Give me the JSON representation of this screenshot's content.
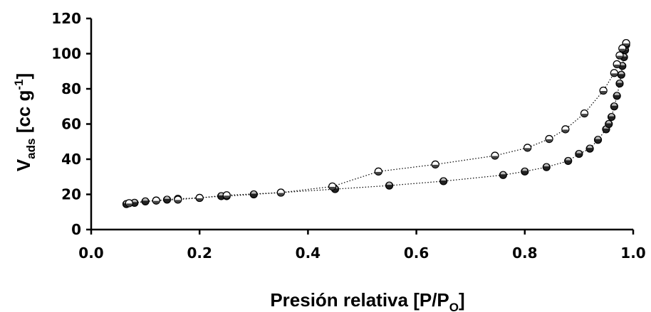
{
  "chart_data": {
    "type": "scatter",
    "title": "",
    "xlabel": {
      "main": "Presión relativa [P/P",
      "sub": "O",
      "end": "]"
    },
    "ylabel": {
      "main": "V",
      "sub": "ads",
      "mid": " [cc g",
      "sup": "-1",
      "end": "]"
    },
    "xlim": [
      0.0,
      1.0
    ],
    "ylim": [
      0,
      120
    ],
    "xticks": [
      "0.0",
      "0.2",
      "0.4",
      "0.6",
      "0.8",
      "1.0"
    ],
    "yticks": [
      "0",
      "20",
      "40",
      "60",
      "80",
      "100",
      "120"
    ],
    "grid": false,
    "legend": "none",
    "series": [
      {
        "marker": "filled-circle",
        "line": "dotted",
        "x": [
          0.065,
          0.08,
          0.1,
          0.12,
          0.14,
          0.16,
          0.2,
          0.24,
          0.25,
          0.3,
          0.35,
          0.45,
          0.55,
          0.65,
          0.76,
          0.8,
          0.84,
          0.88,
          0.9,
          0.92,
          0.935,
          0.95,
          0.955,
          0.96,
          0.965,
          0.97,
          0.975,
          0.978,
          0.98,
          0.983,
          0.985,
          0.987
        ],
        "y": [
          14.5,
          15.2,
          16.0,
          16.5,
          17.0,
          17.5,
          18.0,
          19.0,
          19.0,
          20.0,
          21.0,
          23.0,
          25.0,
          27.5,
          31.0,
          33.0,
          35.5,
          39.0,
          43.0,
          46.0,
          51.0,
          57.0,
          60.0,
          64.0,
          70.0,
          76.0,
          83.0,
          88.0,
          93.0,
          98.0,
          102.0,
          105.0
        ]
      },
      {
        "marker": "open-circle",
        "line": "dotted",
        "x": [
          0.987,
          0.98,
          0.975,
          0.97,
          0.965,
          0.945,
          0.91,
          0.875,
          0.845,
          0.805,
          0.745,
          0.635,
          0.53,
          0.445,
          0.35,
          0.25,
          0.2,
          0.16,
          0.12,
          0.07
        ],
        "y": [
          106.0,
          103.0,
          99.0,
          94.0,
          89.0,
          79.0,
          66.0,
          57.0,
          51.5,
          46.5,
          42.0,
          37.0,
          33.0,
          24.5,
          21.0,
          19.5,
          18.0,
          17.0,
          16.5,
          15.0
        ]
      }
    ]
  },
  "colors": {
    "axis": "#000000",
    "markers": "#000000",
    "background": "#ffffff"
  }
}
